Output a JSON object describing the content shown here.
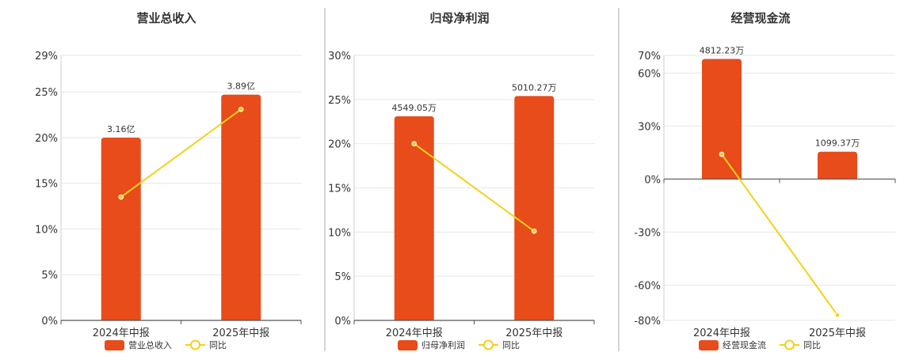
{
  "colors": {
    "bar": "#e84c1a",
    "line": "#f2d21a",
    "grid": "#e6e6ee",
    "axis": "#555555",
    "separator": "#aaaaaa"
  },
  "chart_data": [
    {
      "type": "bar",
      "title": "营业总收入",
      "categories": [
        "2024年中报",
        "2025年中报"
      ],
      "series": [
        {
          "name": "营业总收入",
          "type": "bar",
          "values": [
            20.0,
            24.7
          ],
          "labels": [
            "3.16亿",
            "3.89亿"
          ]
        },
        {
          "name": "同比",
          "type": "line",
          "values": [
            13.5,
            23.1
          ]
        }
      ],
      "ylim": [
        0,
        29
      ],
      "yticks": [
        0,
        5,
        10,
        15,
        20,
        25,
        29
      ],
      "ytick_labels": [
        "0%",
        "5%",
        "10%",
        "15%",
        "20%",
        "25%",
        "29%"
      ],
      "grid": true,
      "legend": "bottom"
    },
    {
      "type": "bar",
      "title": "归母净利润",
      "categories": [
        "2024年中报",
        "2025年中报"
      ],
      "series": [
        {
          "name": "归母净利润",
          "type": "bar",
          "values": [
            23.1,
            25.4
          ],
          "labels": [
            "4549.05万",
            "5010.27万"
          ]
        },
        {
          "name": "同比",
          "type": "line",
          "values": [
            20.0,
            10.1
          ]
        }
      ],
      "ylim": [
        0,
        30
      ],
      "yticks": [
        0,
        5,
        10,
        15,
        20,
        25,
        30
      ],
      "ytick_labels": [
        "0%",
        "5%",
        "10%",
        "15%",
        "20%",
        "25%",
        "30%"
      ],
      "grid": true,
      "legend": "bottom"
    },
    {
      "type": "bar",
      "title": "经营现金流",
      "categories": [
        "2024年中报",
        "2025年中报"
      ],
      "series": [
        {
          "name": "经营现金流",
          "type": "bar",
          "values": [
            68.0,
            15.5
          ],
          "labels": [
            "4812.23万",
            "1099.37万"
          ]
        },
        {
          "name": "同比",
          "type": "line",
          "values": [
            14.0,
            -77.0
          ]
        }
      ],
      "ylim": [
        -80,
        70
      ],
      "yticks": [
        -80,
        -60,
        -30,
        0,
        30,
        60,
        70
      ],
      "ytick_labels": [
        "-80%",
        "-60%",
        "-30%",
        "0%",
        "30%",
        "60%",
        "70%"
      ],
      "grid": true,
      "legend": "bottom"
    }
  ]
}
